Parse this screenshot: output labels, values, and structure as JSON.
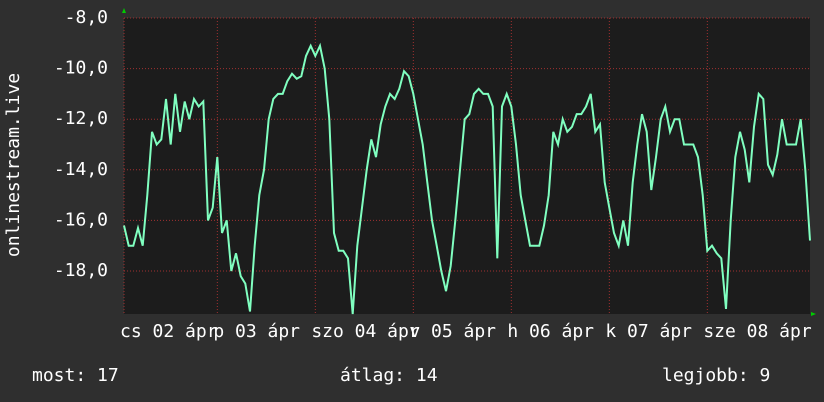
{
  "chart_data": {
    "type": "line",
    "y_label": "onlinestream.live",
    "color": "#80ffc0",
    "grid": true,
    "xlim": [
      0,
      147
    ],
    "xticks": [
      {
        "value": 0,
        "label": "cs 02 ápr"
      },
      {
        "value": 20,
        "label": "p 03 ápr"
      },
      {
        "value": 41,
        "label": "szo 04 ápr"
      },
      {
        "value": 62,
        "label": "v 05 ápr"
      },
      {
        "value": 83,
        "label": "h 06 ápr"
      },
      {
        "value": 104,
        "label": "k 07 ápr"
      },
      {
        "value": 125,
        "label": "sze 08 ápr"
      }
    ],
    "ylim": [
      -19.7,
      -8
    ],
    "yticks": [
      {
        "value": -8,
        "label": "-8,0"
      },
      {
        "value": -10,
        "label": "-10,0"
      },
      {
        "value": -12,
        "label": "-12,0"
      },
      {
        "value": -14,
        "label": "-14,0"
      },
      {
        "value": -16,
        "label": "-16,0"
      },
      {
        "value": -18,
        "label": "-18,0"
      }
    ],
    "values": [
      -16.2,
      -17,
      -17,
      -16.3,
      -17,
      -15,
      -12.5,
      -13,
      -12.8,
      -11.2,
      -13,
      -11,
      -12.5,
      -11.3,
      -12,
      -11.2,
      -11.5,
      -11.3,
      -16,
      -15.5,
      -13.5,
      -16.5,
      -16,
      -18,
      -17.3,
      -18.2,
      -18.5,
      -19.6,
      -17,
      -15,
      -14,
      -12,
      -11.2,
      -11,
      -11,
      -10.5,
      -10.2,
      -10.4,
      -10.3,
      -9.5,
      -9.1,
      -9.5,
      -9.1,
      -10,
      -12,
      -16.5,
      -17.2,
      -17.2,
      -17.5,
      -19.7,
      -17,
      -15.5,
      -14,
      -12.8,
      -13.5,
      -12.2,
      -11.5,
      -11,
      -11.2,
      -10.8,
      -10.1,
      -10.3,
      -11,
      -12,
      -13,
      -14.5,
      -16,
      -17,
      -18,
      -18.8,
      -17.8,
      -16,
      -14,
      -12,
      -11.8,
      -11,
      -10.8,
      -11,
      -11,
      -11.5,
      -17.5,
      -11.5,
      -11,
      -11.5,
      -13,
      -15,
      -16,
      -17,
      -17,
      -17,
      -16.2,
      -15,
      -12.5,
      -13,
      -12,
      -12.5,
      -12.3,
      -11.8,
      -11.8,
      -11.5,
      -11,
      -12.5,
      -12.2,
      -14.5,
      -15.5,
      -16.5,
      -17,
      -16,
      -17,
      -14.5,
      -13,
      -11.8,
      -12.5,
      -14.8,
      -13.5,
      -12,
      -11.5,
      -12.5,
      -12,
      -12,
      -13,
      -13,
      -13,
      -13.5,
      -15,
      -17.2,
      -17,
      -17.3,
      -17.5,
      -19.5,
      -16,
      -13.5,
      -12.5,
      -13.2,
      -14.5,
      -12.3,
      -11,
      -11.2,
      -13.8,
      -14.2,
      -13.4,
      -12,
      -13,
      -13,
      -13,
      -12,
      -14,
      -16.8
    ],
    "footer": [
      "most: 17",
      "átlag: 14",
      "legjobb: 9"
    ]
  }
}
